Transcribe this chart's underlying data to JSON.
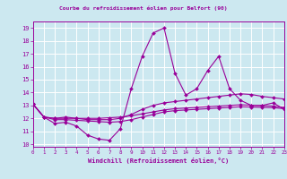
{
  "title": "Courbe du refroidissement éolien pour Belfort (90)",
  "xlabel": "Windchill (Refroidissement éolien,°C)",
  "bg_color": "#cce8f0",
  "line_color": "#990099",
  "grid_color": "#ffffff",
  "xlim": [
    0,
    23
  ],
  "ylim": [
    9.8,
    19.5
  ],
  "xticks": [
    0,
    1,
    2,
    3,
    4,
    5,
    6,
    7,
    8,
    9,
    10,
    11,
    12,
    13,
    14,
    15,
    16,
    17,
    18,
    19,
    20,
    21,
    22,
    23
  ],
  "yticks": [
    10,
    11,
    12,
    13,
    14,
    15,
    16,
    17,
    18,
    19
  ],
  "series": [
    [
      13.1,
      12.1,
      11.6,
      11.7,
      11.4,
      10.7,
      10.4,
      10.3,
      11.2,
      14.3,
      16.8,
      18.6,
      19.0,
      15.5,
      13.8,
      14.3,
      15.7,
      16.8,
      14.3,
      13.4,
      13.0,
      13.0,
      13.2,
      12.7
    ],
    [
      13.1,
      12.1,
      12.0,
      12.1,
      12.0,
      11.9,
      11.9,
      11.9,
      12.0,
      12.3,
      12.7,
      13.0,
      13.2,
      13.3,
      13.4,
      13.5,
      13.6,
      13.7,
      13.8,
      13.9,
      13.85,
      13.7,
      13.6,
      13.5
    ],
    [
      13.1,
      12.1,
      11.9,
      11.9,
      11.85,
      11.8,
      11.75,
      11.7,
      11.75,
      11.9,
      12.1,
      12.3,
      12.5,
      12.6,
      12.65,
      12.7,
      12.75,
      12.8,
      12.85,
      12.9,
      12.88,
      12.85,
      12.83,
      12.75
    ],
    [
      13.1,
      12.1,
      12.0,
      12.0,
      12.0,
      12.0,
      12.0,
      12.05,
      12.1,
      12.2,
      12.35,
      12.5,
      12.65,
      12.75,
      12.8,
      12.85,
      12.9,
      12.95,
      13.0,
      13.05,
      13.02,
      12.98,
      12.95,
      12.85
    ]
  ]
}
